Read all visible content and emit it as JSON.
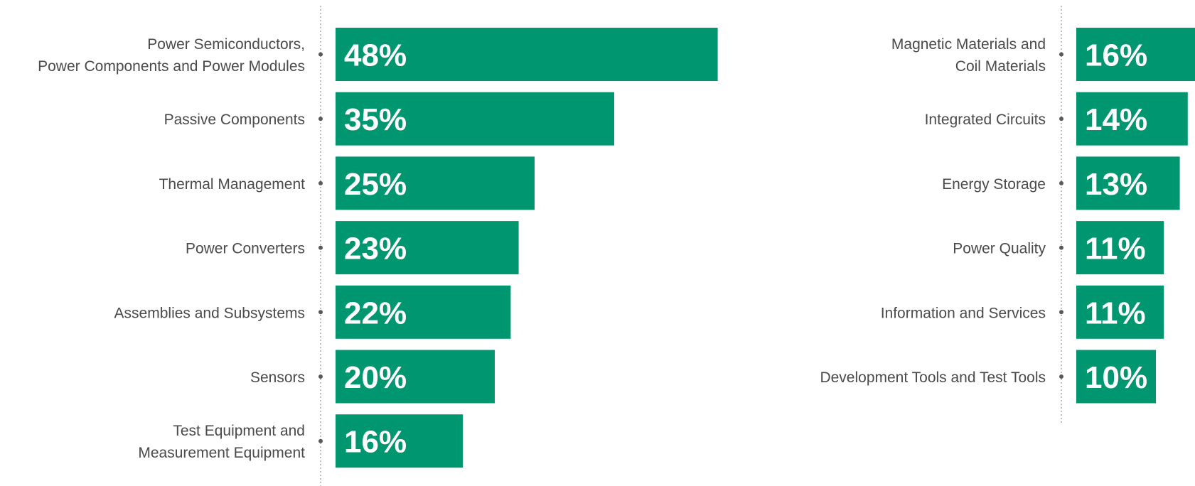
{
  "colors": {
    "bar": "#009670",
    "bar_text": "#ffffff",
    "label_text": "#4a4a4a",
    "axis_line": "#aaaaaa",
    "axis_dot": "#5a5a5a"
  },
  "chart_data": [
    {
      "type": "bar",
      "orientation": "horizontal",
      "categories": [
        [
          "Power Semiconductors,",
          "Power Components and Power Modules"
        ],
        [
          "Passive Components"
        ],
        [
          "Thermal Management"
        ],
        [
          "Power Converters"
        ],
        [
          "Assemblies and Subsystems"
        ],
        [
          "Sensors"
        ],
        [
          "Test Equipment and",
          "Measurement Equipment"
        ]
      ],
      "values": [
        48,
        35,
        25,
        23,
        22,
        20,
        16
      ],
      "value_labels": [
        "48%",
        "35%",
        "25%",
        "23%",
        "22%",
        "20%",
        "16%"
      ],
      "unit": "%",
      "xlim": [
        0,
        50
      ],
      "grid": false,
      "legend": "none"
    },
    {
      "type": "bar",
      "orientation": "horizontal",
      "categories": [
        [
          "Magnetic Materials and",
          "Coil Materials"
        ],
        [
          "Integrated Circuits"
        ],
        [
          "Energy Storage"
        ],
        [
          "Power Quality"
        ],
        [
          "Information and Services"
        ],
        [
          "Development Tools and Test Tools"
        ]
      ],
      "values": [
        16,
        14,
        13,
        11,
        11,
        10
      ],
      "value_labels": [
        "16%",
        "14%",
        "13%",
        "11%",
        "11%",
        "10%"
      ],
      "unit": "%",
      "xlim": [
        0,
        50
      ],
      "grid": false,
      "legend": "none"
    }
  ]
}
